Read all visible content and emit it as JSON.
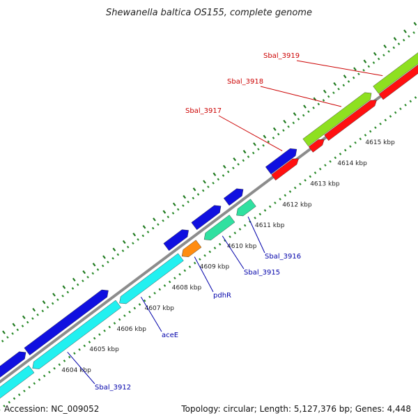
{
  "title": "Shewanella baltica OS155, complete genome",
  "footer": {
    "accession": "Accession: NC_009052",
    "topology": "Topology: circular; Length: 5,127,376 bp; Genes: 4,448"
  },
  "colors": {
    "backbone": "#8c8c8c",
    "tick_gc": "#2a8a2a",
    "forward_cds": "#1010e0",
    "reverse_cds_cyan": "#22f0f0",
    "reverse_cds_green": "#30e0a0",
    "reverse_cds_orange": "#ff8c10",
    "forward_red": "#ff1010",
    "lime": "#8ee020",
    "label_red": "#cc0000",
    "label_blue": "#0000aa"
  },
  "scale_labels": [
    "4604 kbp",
    "4605 kbp",
    "4606 kbp",
    "4607 kbp",
    "4608 kbp",
    "4609 kbp",
    "4610 kbp",
    "4611 kbp",
    "4612 kbp",
    "4613 kbp",
    "4614 kbp",
    "4615 kbp"
  ],
  "gene_labels": [
    {
      "text": "Sbal_3919",
      "color": "red"
    },
    {
      "text": "Sbal_3918",
      "color": "red"
    },
    {
      "text": "Sbal_3917",
      "color": "red"
    },
    {
      "text": "Sbal_3916",
      "color": "blue"
    },
    {
      "text": "Sbal_3915",
      "color": "blue"
    },
    {
      "text": "pdhR",
      "color": "blue"
    },
    {
      "text": "aceE",
      "color": "blue"
    },
    {
      "text": "Sbal_3912",
      "color": "blue"
    }
  ]
}
